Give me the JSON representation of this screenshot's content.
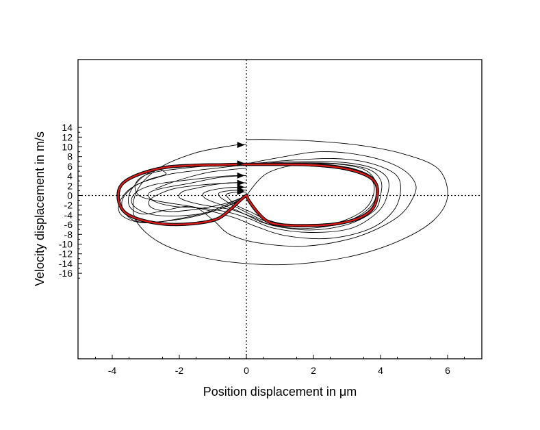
{
  "chart_data": {
    "type": "line",
    "title": "",
    "xlabel": "Position displacement in μm",
    "ylabel": "Velocity displacement in m/s",
    "xlim": [
      -5,
      7
    ],
    "ylim": [
      -17,
      14
    ],
    "xticks": [
      -4,
      -2,
      0,
      2,
      4,
      6
    ],
    "yticks": [
      14,
      12,
      10,
      8,
      6,
      4,
      2,
      0,
      -2,
      -4,
      -6,
      -8,
      -10,
      -12,
      -14,
      -16
    ],
    "grid": false,
    "legend": "none",
    "reference_lines": {
      "x": 0,
      "y": 0,
      "style": "dotted"
    },
    "colors": {
      "trajectory": "#000000",
      "limit_cycle": "#d81b1b"
    },
    "series": [
      {
        "role": "trajectory",
        "x": [
          0,
          0.8,
          2.0,
          3.3,
          4.6,
          5.7,
          6.0,
          5.6,
          4.6,
          3.2,
          1.5,
          0.0,
          -1.4,
          -2.6,
          -3.3,
          -3.3,
          -2.7,
          -1.6,
          -0.4,
          0.0
        ],
        "y": [
          11.5,
          11.5,
          11.2,
          10.4,
          8.7,
          5.6,
          0.0,
          -5.0,
          -9.2,
          -12.4,
          -14.1,
          -14.0,
          -12.6,
          -9.6,
          -5.0,
          0.4,
          5.2,
          8.6,
          10.3,
          10.5
        ]
      },
      {
        "role": "trajectory",
        "x": [
          0,
          0.9,
          2.2,
          3.5,
          4.5,
          5.0,
          5.0,
          4.5,
          3.3,
          1.8,
          0.4,
          -0.5,
          -1.0,
          -1.6,
          -2.4,
          -3.1,
          -3.5,
          -3.4,
          -2.8,
          -1.6,
          -0.3,
          0.0
        ],
        "y": [
          6.5,
          7.7,
          9.0,
          8.2,
          6.0,
          3.0,
          0.0,
          -4.5,
          -8.5,
          -10.4,
          -9.8,
          -8.0,
          -5.0,
          -2.3,
          -3.0,
          -3.8,
          -2.0,
          1.5,
          5.0,
          6.4,
          6.5,
          6.5
        ]
      },
      {
        "role": "trajectory",
        "x": [
          0,
          1.2,
          2.6,
          3.6,
          4.4,
          4.6,
          4.4,
          3.7,
          2.5,
          1.2,
          0.3,
          -0.3,
          -0.9,
          -1.7,
          -2.6,
          -3.2,
          -3.3,
          -2.9,
          -2.0,
          -0.9,
          0.0
        ],
        "y": [
          6.4,
          7.2,
          7.6,
          6.8,
          4.6,
          1.5,
          -3.0,
          -6.8,
          -8.8,
          -8.3,
          -6.4,
          -4.7,
          -3.5,
          -2.2,
          -1.2,
          0.0,
          2.5,
          4.5,
          5.5,
          6.2,
          6.4
        ]
      },
      {
        "role": "trajectory",
        "x": [
          0,
          1.3,
          2.7,
          3.7,
          4.2,
          4.2,
          3.9,
          3.1,
          1.9,
          0.8,
          0.1,
          -0.5,
          -1.2,
          -2.2,
          -2.8,
          -2.9,
          -2.5,
          -1.7,
          -0.8,
          0.0
        ],
        "y": [
          6.4,
          6.9,
          6.9,
          5.8,
          3.6,
          0.0,
          -3.5,
          -6.8,
          -7.6,
          -6.7,
          -4.8,
          -3.5,
          -2.7,
          -2.2,
          -1.0,
          0.5,
          1.5,
          2.5,
          3.7,
          4.1
        ]
      },
      {
        "role": "trajectory",
        "x": [
          0,
          1.3,
          2.6,
          3.6,
          4.0,
          4.0,
          3.8,
          3.0,
          1.9,
          0.8,
          0.2,
          -0.4,
          -1.0,
          -1.6,
          -2.0,
          -1.9,
          -1.5,
          -1.0,
          -0.5,
          0.0
        ],
        "y": [
          6.4,
          6.7,
          6.6,
          5.5,
          3.2,
          0.0,
          -3.2,
          -6.0,
          -7.1,
          -6.2,
          -4.5,
          -3.0,
          -2.3,
          -1.5,
          -0.4,
          0.8,
          1.5,
          2.2,
          2.6,
          2.6
        ]
      },
      {
        "role": "trajectory",
        "x": [
          0,
          1.0,
          2.2,
          3.2,
          3.8,
          3.9,
          3.6,
          2.8,
          1.6,
          0.6,
          0.0,
          -0.4,
          -0.8,
          -1.2,
          -1.3,
          -1.1,
          -0.7,
          -0.3,
          0.0
        ],
        "y": [
          6.4,
          6.6,
          6.5,
          5.5,
          3.5,
          0.5,
          -3.0,
          -5.8,
          -6.8,
          -5.8,
          -4.0,
          -2.7,
          -1.8,
          -0.7,
          0.3,
          1.0,
          1.5,
          1.7,
          1.7
        ]
      },
      {
        "role": "trajectory",
        "x": [
          0,
          1.0,
          2.1,
          3.1,
          3.7,
          3.8,
          3.5,
          2.7,
          1.6,
          0.7,
          0.1,
          -0.3,
          -0.6,
          -0.8,
          -0.8,
          -0.5,
          -0.2,
          0.0
        ],
        "y": [
          6.4,
          6.5,
          6.4,
          5.5,
          3.5,
          0.5,
          -3.0,
          -5.6,
          -6.5,
          -5.6,
          -3.8,
          -2.4,
          -1.2,
          -0.2,
          0.6,
          1.0,
          1.1,
          1.1
        ]
      },
      {
        "role": "trajectory",
        "x": [
          0,
          0.0,
          0.6,
          1.6,
          2.8,
          3.6,
          3.9,
          3.7,
          3.0,
          1.9,
          0.8,
          0.1,
          -0.3,
          -0.5,
          -0.6,
          -0.4,
          -0.1,
          0.0
        ],
        "y": [
          0.0,
          0.0,
          4.5,
          6.4,
          6.4,
          5.0,
          1.5,
          -2.8,
          -5.6,
          -6.4,
          -5.4,
          -3.3,
          -2.0,
          -0.8,
          0.2,
          0.6,
          0.7,
          0.7
        ]
      },
      {
        "role": "trajectory",
        "x": [
          0.0,
          -0.5,
          -1.2,
          -2.2,
          -3.1,
          -3.7,
          -3.8,
          -3.5,
          -2.9,
          -2.4,
          -2.6,
          -2.3,
          -1.5,
          -0.5,
          0.0
        ],
        "y": [
          0.0,
          -1.6,
          -3.5,
          -5.0,
          -5.6,
          -4.2,
          -1.8,
          1.2,
          3.3,
          4.4,
          5.6,
          6.0,
          6.2,
          6.3,
          6.4
        ]
      },
      {
        "role": "trajectory",
        "x": [
          0.0,
          -0.5,
          -1.3,
          -2.3,
          -3.2,
          -3.6,
          -3.7,
          -3.3,
          -2.7,
          -2.2,
          -1.2,
          -0.3,
          0.0
        ],
        "y": [
          0.0,
          -1.9,
          -3.9,
          -5.2,
          -5.4,
          -3.8,
          -0.9,
          2.1,
          3.6,
          4.5,
          5.4,
          6.1,
          6.4
        ]
      },
      {
        "role": "trajectory",
        "x": [
          0.0,
          -0.4,
          -1.1,
          -2.0,
          -2.9,
          -3.4,
          -3.3,
          -2.7,
          -1.6,
          -0.6,
          0.0
        ],
        "y": [
          0.0,
          -1.7,
          -3.4,
          -4.2,
          -3.8,
          -1.8,
          0.6,
          2.3,
          3.3,
          4.0,
          4.1
        ]
      },
      {
        "role": "trajectory",
        "x": [
          0.0,
          -0.5,
          -1.3,
          -2.2,
          -2.8,
          -2.9,
          -2.6,
          -2.1,
          -1.3,
          -0.4,
          0.0
        ],
        "y": [
          0.0,
          -1.4,
          -2.6,
          -3.3,
          -2.6,
          -1.1,
          0.3,
          1.5,
          2.2,
          2.6,
          2.6
        ]
      },
      {
        "role": "trajectory",
        "x": [
          -2.7,
          -2.3,
          -1.7,
          -1.1,
          -0.5,
          0.0
        ],
        "y": [
          1.4,
          2.5,
          3.8,
          4.8,
          5.3,
          5.6
        ]
      },
      {
        "role": "limit_cycle",
        "x": [
          0.0,
          0.8,
          1.9,
          2.8,
          3.5,
          3.85,
          3.9,
          3.75,
          3.3,
          2.6,
          1.8,
          1.0,
          0.6,
          0.3,
          0.05,
          0.0,
          -0.2,
          -0.5,
          -0.9,
          -1.6,
          -2.4,
          -3.1,
          -3.6,
          -3.8,
          -3.8,
          -3.6,
          -3.1,
          -2.4,
          -1.6,
          -0.8,
          -0.2,
          0.0
        ],
        "y": [
          6.4,
          6.4,
          6.3,
          5.7,
          4.4,
          2.6,
          0.0,
          -2.8,
          -4.8,
          -5.9,
          -6.2,
          -6.0,
          -5.2,
          -3.2,
          -0.8,
          0.0,
          -1.1,
          -3.0,
          -4.9,
          -5.8,
          -5.9,
          -5.1,
          -3.6,
          -1.4,
          1.2,
          3.0,
          4.6,
          5.8,
          6.2,
          6.3,
          6.4,
          6.4
        ]
      }
    ],
    "arrows": [
      {
        "x": -0.05,
        "y": 10.4
      },
      {
        "x": -0.05,
        "y": 6.6
      },
      {
        "x": -0.05,
        "y": 4.1
      },
      {
        "x": -0.05,
        "y": 2.6
      },
      {
        "x": -0.05,
        "y": 1.7
      },
      {
        "x": -0.05,
        "y": 1.1
      },
      {
        "x": -0.05,
        "y": 0.75
      }
    ]
  }
}
